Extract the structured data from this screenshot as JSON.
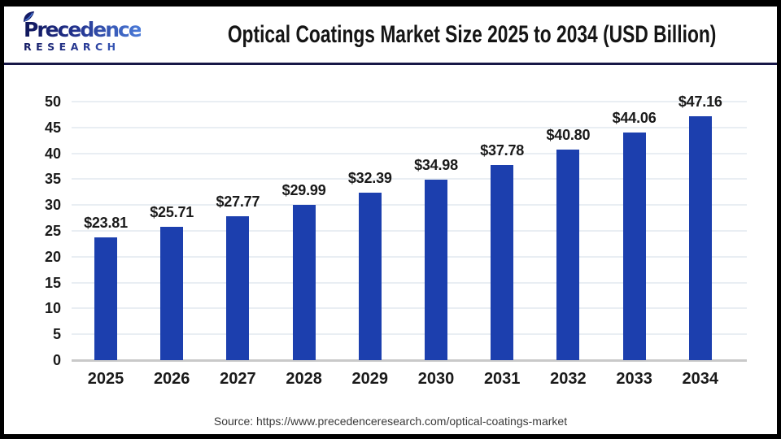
{
  "header": {
    "logo": {
      "line1": "Precedence",
      "line2": "RESEARCH"
    },
    "title": "Optical Coatings Market Size 2025 to 2034 (USD Billion)"
  },
  "chart_data": {
    "type": "bar",
    "title": "Optical Coatings Market Size 2025 to 2034 (USD Billion)",
    "categories": [
      "2025",
      "2026",
      "2027",
      "2028",
      "2029",
      "2030",
      "2031",
      "2032",
      "2033",
      "2034"
    ],
    "values": [
      23.81,
      25.71,
      27.77,
      29.99,
      32.39,
      34.98,
      37.78,
      40.8,
      44.06,
      47.16
    ],
    "value_labels": [
      "$23.81",
      "$25.71",
      "$27.77",
      "$29.99",
      "$32.39",
      "$34.98",
      "$37.78",
      "$40.80",
      "$44.06",
      "$47.16"
    ],
    "xlabel": "",
    "ylabel": "",
    "ylim": [
      0,
      50
    ],
    "yticks": [
      0,
      5,
      10,
      15,
      20,
      25,
      30,
      35,
      40,
      45,
      50
    ],
    "grid": true,
    "legend": false,
    "bar_color": "#1c3fae"
  },
  "footer": {
    "source": "Source: https://www.precedenceresearch.com/optical-coatings-market"
  },
  "colors": {
    "bar": "#1c3fae",
    "gridline": "#e9eef3",
    "axis_line": "#c9c9c9",
    "separator": "#171747",
    "frame": "#000000",
    "background": "#ffffff"
  }
}
